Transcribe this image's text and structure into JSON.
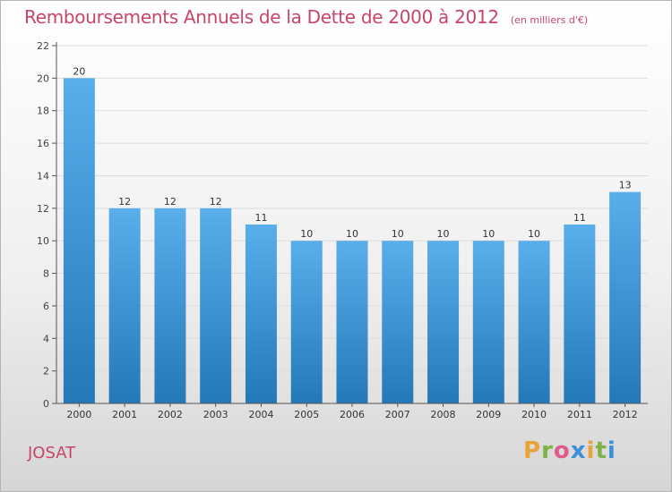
{
  "header": {
    "title": "Remboursements Annuels de la Dette de 2000 à 2012",
    "subtitle": "(en milliers d'€)"
  },
  "commune": "JOSAT",
  "logo": {
    "text": "Proxiti",
    "colors": [
      "#e8a33a",
      "#7cb342",
      "#e05a8a",
      "#3d8fd6",
      "#e8a33a",
      "#7cb342",
      "#3d8fd6"
    ]
  },
  "chart_data": {
    "type": "bar",
    "categories": [
      "2000",
      "2001",
      "2002",
      "2003",
      "2004",
      "2005",
      "2006",
      "2007",
      "2008",
      "2009",
      "2010",
      "2011",
      "2012"
    ],
    "values": [
      20,
      12,
      12,
      12,
      11,
      10,
      10,
      10,
      10,
      10,
      10,
      11,
      13
    ],
    "data_labels": [
      "20",
      "12",
      "12",
      "12",
      "11",
      "10",
      "10",
      "10",
      "10",
      "10",
      "10",
      "11",
      "13"
    ],
    "yticks": [
      0,
      2,
      4,
      6,
      8,
      10,
      12,
      14,
      16,
      18,
      20,
      22
    ],
    "ylim": [
      0,
      22
    ],
    "grid": true,
    "bar_color_top": "#5aaeea",
    "bar_color_bottom": "#2478b8",
    "axis_color": "#555555",
    "grid_color": "#dcdcdc"
  }
}
